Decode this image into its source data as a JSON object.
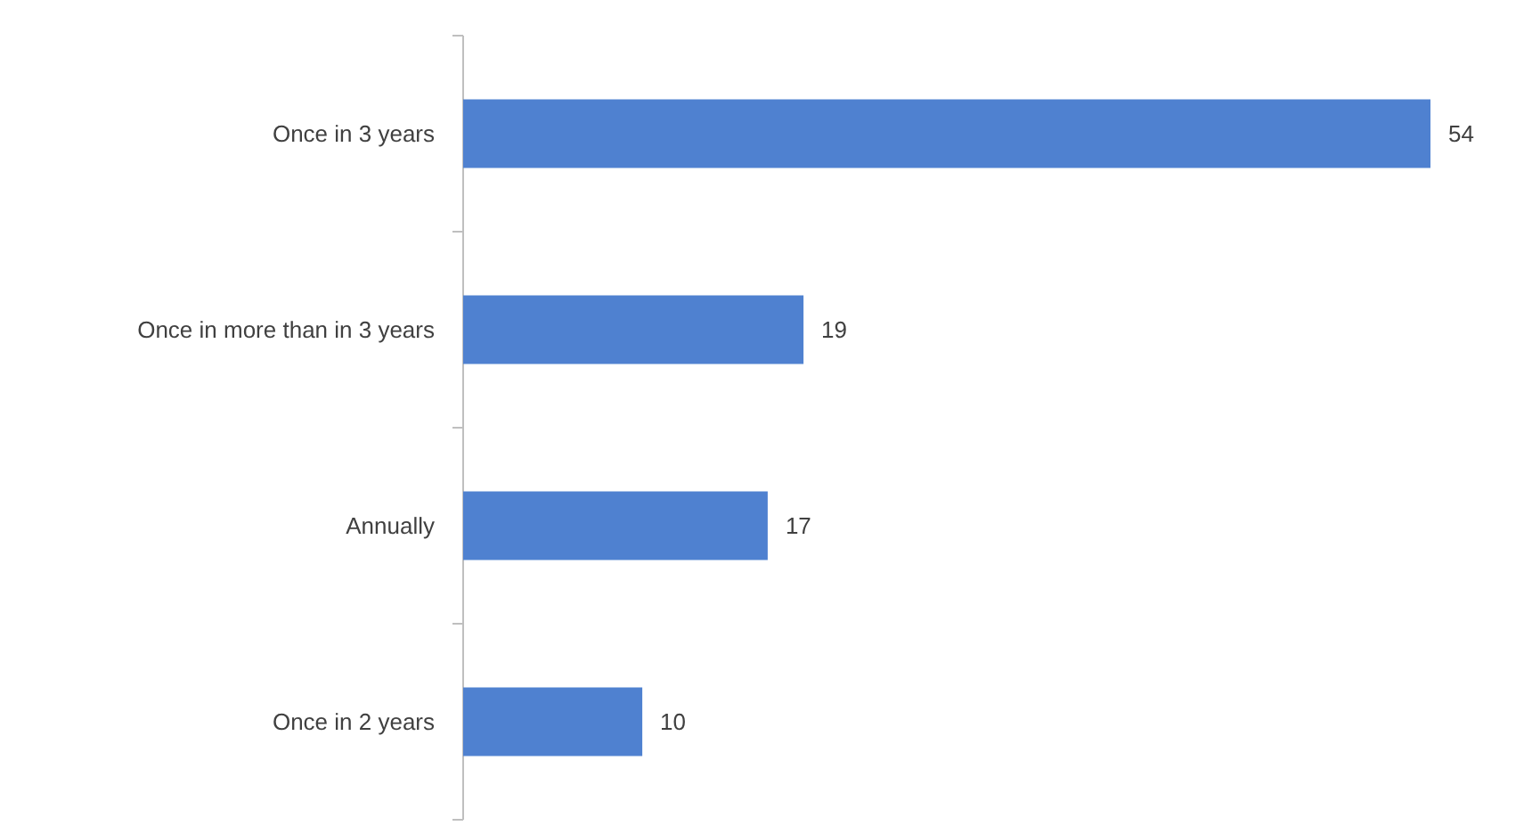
{
  "chart_data": {
    "type": "bar",
    "orientation": "horizontal",
    "categories": [
      "Once in 3 years",
      "Once in more than in 3 years",
      "Annually",
      "Once in 2 years"
    ],
    "values": [
      54,
      19,
      17,
      10
    ],
    "color": "#4f81d0",
    "data_labels": true
  }
}
